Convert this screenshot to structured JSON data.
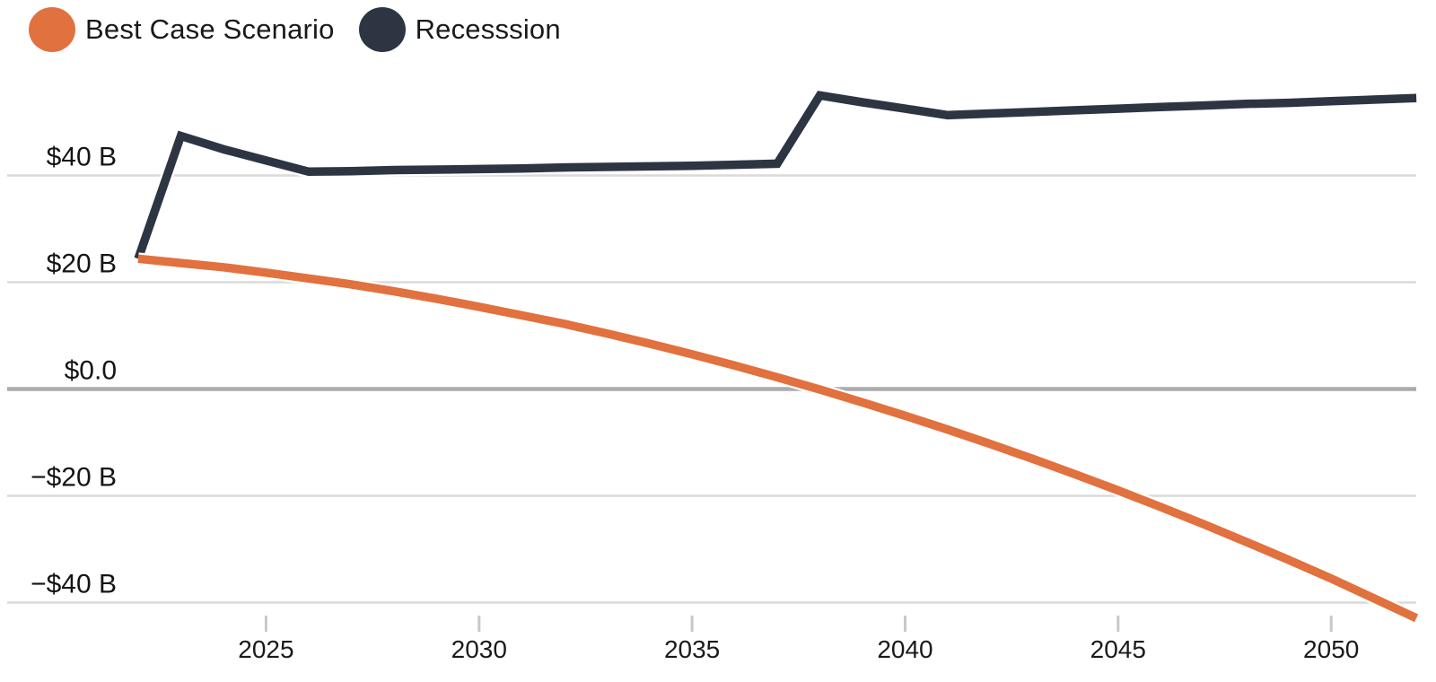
{
  "chart_data": {
    "type": "line",
    "title": "",
    "xlabel": "",
    "ylabel": "",
    "x": [
      2022,
      2023,
      2024,
      2025,
      2026,
      2027,
      2028,
      2029,
      2030,
      2031,
      2032,
      2033,
      2034,
      2035,
      2036,
      2037,
      2038,
      2039,
      2040,
      2041,
      2042,
      2043,
      2044,
      2045,
      2046,
      2047,
      2048,
      2049,
      2050,
      2051,
      2052
    ],
    "series": [
      {
        "name": "Best Case Scenario",
        "color": "#e1713e",
        "values": [
          24.4,
          23.6,
          22.8,
          21.8,
          20.7,
          19.6,
          18.3,
          16.9,
          15.4,
          13.8,
          12.2,
          10.4,
          8.5,
          6.5,
          4.4,
          2.2,
          -0.1,
          -2.5,
          -5.0,
          -7.6,
          -10.3,
          -13.1,
          -16.0,
          -19.0,
          -22.1,
          -25.3,
          -28.6,
          -32.0,
          -35.5,
          -39.2,
          -42.9
        ]
      },
      {
        "name": "Recesssion",
        "color": "#2d3543",
        "values": [
          24.4,
          47.4,
          44.9,
          42.8,
          40.7,
          40.8,
          41.0,
          41.1,
          41.2,
          41.3,
          41.5,
          41.6,
          41.7,
          41.8,
          42.0,
          42.2,
          55.0,
          53.7,
          52.5,
          51.3,
          51.6,
          51.9,
          52.2,
          52.5,
          52.8,
          53.1,
          53.4,
          53.6,
          53.9,
          54.2,
          54.5
        ]
      }
    ],
    "xlim": [
      2022,
      2052
    ],
    "ylim": [
      -48,
      58
    ],
    "ytick_values": [
      40,
      20,
      0,
      -20,
      -40
    ],
    "ytick_labels": [
      "$40 B",
      "$20 B",
      "$0.0",
      "−$20 B",
      "−$40 B"
    ],
    "xtick_values": [
      2025,
      2030,
      2035,
      2040,
      2045,
      2050
    ],
    "xtick_labels": [
      "2025",
      "2030",
      "2035",
      "2040",
      "2045",
      "2050"
    ],
    "grid": "horizontal-only",
    "legend_position": "top-left",
    "colors": {
      "grid_line": "#dadada",
      "zero_line": "#ababab",
      "tick_mark": "#c8c8c8",
      "background": "#ffffff"
    }
  }
}
